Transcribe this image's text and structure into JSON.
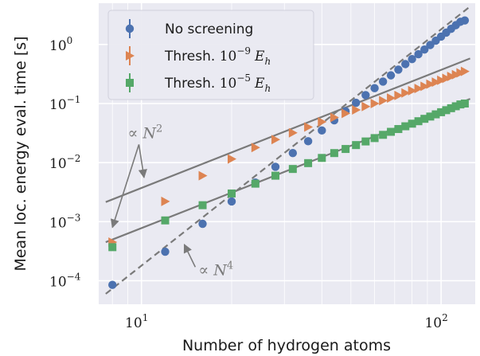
{
  "chart_data": {
    "type": "scatter",
    "xlabel": "Number of hydrogen atoms",
    "ylabel": "Mean loc. energy eval. time [s]",
    "xscale": "log",
    "yscale": "log",
    "xlim": [
      7.2,
      130
    ],
    "ylim": [
      4e-05,
      5
    ],
    "x_ticks": [
      {
        "value": 10,
        "base": "10",
        "exp": "1"
      },
      {
        "value": 100,
        "base": "10",
        "exp": "2"
      }
    ],
    "y_ticks": [
      {
        "value": 0.0001,
        "base": "10",
        "exp": "−4"
      },
      {
        "value": 0.001,
        "base": "10",
        "exp": "−3"
      },
      {
        "value": 0.01,
        "base": "10",
        "exp": "−2"
      },
      {
        "value": 0.1,
        "base": "10",
        "exp": "−1"
      },
      {
        "value": 1,
        "base": "10",
        "exp": "0"
      }
    ],
    "grid": true,
    "legend_position": "top-left",
    "x": [
      8,
      12,
      16,
      20,
      24,
      28,
      32,
      36,
      40,
      44,
      48,
      52,
      56,
      60,
      64,
      68,
      72,
      76,
      80,
      84,
      88,
      92,
      96,
      100,
      104,
      108,
      112,
      116,
      120
    ],
    "series": [
      {
        "name": "No screening",
        "label_parts": {
          "text": "No screening",
          "math": "",
          "sup": "",
          "unit": "",
          "sub": ""
        },
        "color": "#4c72b0",
        "marker": "circle",
        "values": [
          8.5e-05,
          0.00031,
          0.00092,
          0.0022,
          0.0046,
          0.0085,
          0.0145,
          0.023,
          0.035,
          0.052,
          0.074,
          0.103,
          0.139,
          0.182,
          0.235,
          0.3,
          0.375,
          0.465,
          0.565,
          0.685,
          0.82,
          0.98,
          1.16,
          1.36,
          1.59,
          1.84,
          2.12,
          2.42,
          2.55
        ]
      },
      {
        "name": "Thresh. 10−9 Eh",
        "label_parts": {
          "text": "Thresh. ",
          "math": "10",
          "sup": "−9",
          "unit": "E",
          "sub": "h"
        },
        "color": "#dd8452",
        "marker": "triangle-right",
        "values": [
          0.00045,
          0.0022,
          0.006,
          0.0115,
          0.018,
          0.0245,
          0.032,
          0.04,
          0.049,
          0.058,
          0.068,
          0.078,
          0.089,
          0.1,
          0.112,
          0.124,
          0.137,
          0.151,
          0.165,
          0.18,
          0.196,
          0.213,
          0.23,
          0.248,
          0.267,
          0.287,
          0.308,
          0.33,
          0.35
        ]
      },
      {
        "name": "Thresh. 10−5 Eh",
        "label_parts": {
          "text": "Thresh. ",
          "math": "10",
          "sup": "−5",
          "unit": "E",
          "sub": "h"
        },
        "color": "#55a868",
        "marker": "square",
        "values": [
          0.00037,
          0.00105,
          0.0019,
          0.003,
          0.0044,
          0.006,
          0.0078,
          0.0098,
          0.012,
          0.0145,
          0.017,
          0.0198,
          0.0228,
          0.026,
          0.0295,
          0.0332,
          0.037,
          0.0412,
          0.0456,
          0.0502,
          0.0551,
          0.0602,
          0.0656,
          0.0713,
          0.0772,
          0.0834,
          0.0899,
          0.0966,
          0.1
        ]
      }
    ],
    "fit_lines": [
      {
        "label": "N^2",
        "style": "solid",
        "color": "#7a7a7a",
        "x": [
          7.6,
          125
        ],
        "y": [
          0.00215,
          0.58
        ]
      },
      {
        "label": "N^2",
        "style": "solid",
        "color": "#7a7a7a",
        "x": [
          7.6,
          125
        ],
        "y": [
          0.00045,
          0.12
        ]
      },
      {
        "label": "N^4",
        "style": "dashed",
        "color": "#7a7a7a",
        "x": [
          7.6,
          125
        ],
        "y": [
          6e-05,
          4.4
        ]
      }
    ],
    "annotations": [
      {
        "prefix": "∝ ",
        "base": "N",
        "sup": "2",
        "text_x": 9.0,
        "text_y": 0.026,
        "arrows": [
          [
            10.2,
            0.0056
          ],
          [
            8.0,
            0.0008
          ]
        ]
      },
      {
        "prefix": "∝ ",
        "base": "N",
        "sup": "4",
        "text_x": 15.5,
        "text_y": 0.000125,
        "arrows": [
          [
            13.9,
            0.00041
          ]
        ]
      }
    ]
  }
}
